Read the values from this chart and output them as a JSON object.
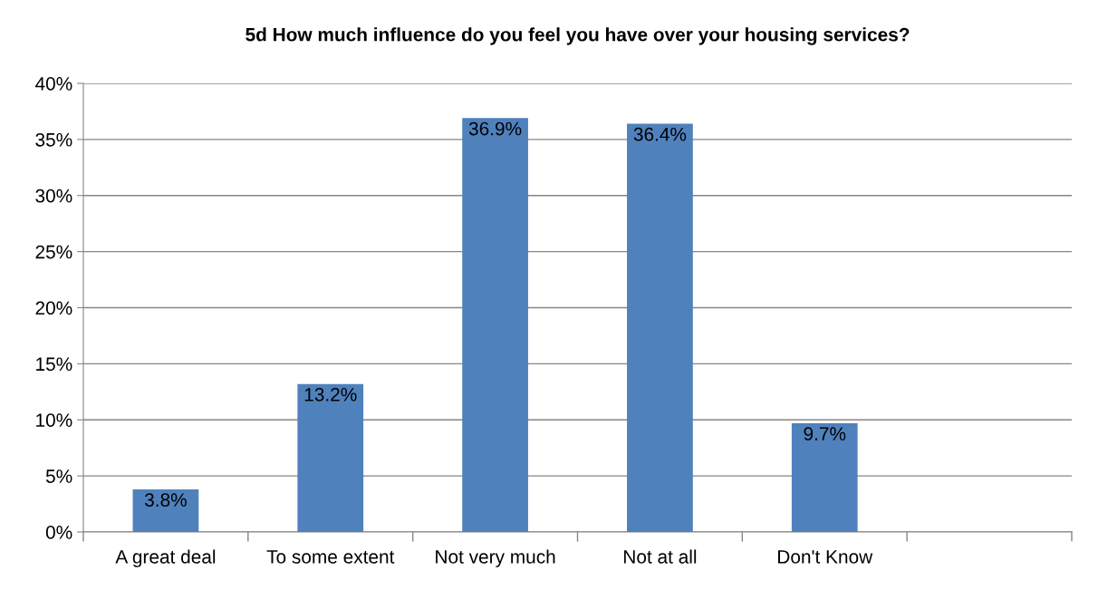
{
  "chart_data": {
    "type": "bar",
    "title": "5d How much influence do you feel you have over your housing services?",
    "categories": [
      "A great deal",
      "To some extent",
      "Not very much",
      "Not at all",
      "Don't Know",
      null
    ],
    "values": [
      3.8,
      13.2,
      36.9,
      36.4,
      9.7,
      null
    ],
    "value_labels": [
      "3.8%",
      "13.2%",
      "36.9%",
      "36.4%",
      "9.7%",
      null
    ],
    "color": "#4f81bd",
    "ylim": [
      0,
      40
    ],
    "yticks": [
      {
        "value": 0,
        "label": "0%"
      },
      {
        "value": 5,
        "label": "5%"
      },
      {
        "value": 10,
        "label": "10%"
      },
      {
        "value": 15,
        "label": "15%"
      },
      {
        "value": 20,
        "label": "20%"
      },
      {
        "value": 25,
        "label": "25%"
      },
      {
        "value": 30,
        "label": "30%"
      },
      {
        "value": 35,
        "label": "35%"
      },
      {
        "value": 40,
        "label": "40%"
      }
    ],
    "grid": "y",
    "legend": false
  }
}
